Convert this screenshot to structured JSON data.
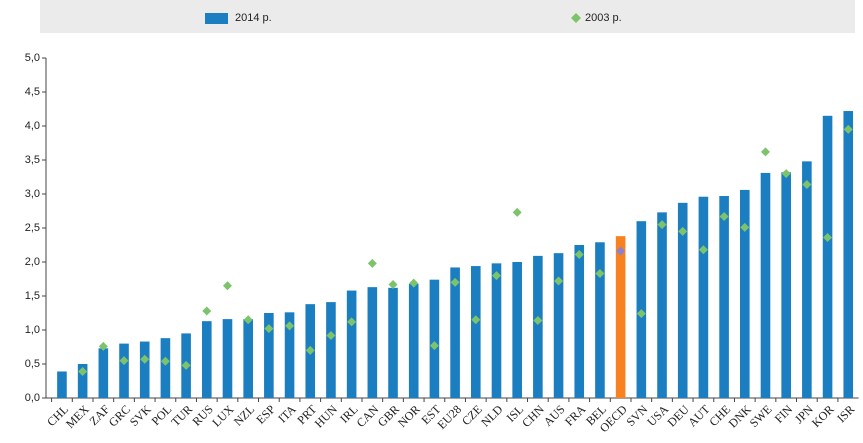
{
  "chart_data": {
    "type": "bar",
    "categories": [
      "CHL",
      "MEX",
      "ZAF",
      "GRC",
      "SVK",
      "POL",
      "TUR",
      "RUS",
      "LUX",
      "NZL",
      "ESP",
      "ITA",
      "PRT",
      "HUN",
      "IRL",
      "CAN",
      "GBR",
      "NOR",
      "EST",
      "EU28",
      "CZE",
      "NLD",
      "ISL",
      "CHN",
      "AUS",
      "FRA",
      "BEL",
      "OECD",
      "SVN",
      "USA",
      "DEU",
      "AUT",
      "CHE",
      "DNK",
      "SWE",
      "FIN",
      "JPN",
      "KOR",
      "ISR"
    ],
    "series": [
      {
        "name": "2014 р.",
        "color": "#1a7ec1",
        "marker": "bar",
        "values": [
          0.39,
          0.5,
          0.73,
          0.8,
          0.83,
          0.88,
          0.95,
          1.13,
          1.16,
          1.16,
          1.25,
          1.26,
          1.38,
          1.41,
          1.58,
          1.63,
          1.62,
          1.68,
          1.74,
          1.92,
          1.94,
          1.98,
          2.0,
          2.09,
          2.13,
          2.25,
          2.29,
          2.38,
          2.6,
          2.73,
          2.87,
          2.96,
          2.97,
          3.06,
          3.31,
          3.32,
          3.48,
          4.15,
          4.22
        ]
      },
      {
        "name": "2003 р.",
        "color": "#7dc36b",
        "marker": "diamond",
        "values": [
          null,
          0.39,
          0.76,
          0.55,
          0.57,
          0.54,
          0.48,
          1.28,
          1.65,
          1.15,
          1.02,
          1.06,
          0.7,
          0.92,
          1.12,
          1.98,
          1.67,
          1.69,
          0.77,
          1.7,
          1.15,
          1.8,
          2.73,
          1.14,
          1.72,
          2.11,
          1.83,
          2.16,
          1.24,
          2.55,
          2.45,
          2.18,
          2.67,
          2.51,
          3.62,
          3.3,
          3.14,
          2.36,
          3.95
        ]
      }
    ],
    "highlight": {
      "category": "OECD",
      "bar_color": "#f7821f",
      "marker_color": "#8b82d0"
    },
    "ylim": [
      0,
      5
    ],
    "yticks": [
      {
        "value": 0,
        "label": "0,0"
      },
      {
        "value": 0.5,
        "label": "0,5"
      },
      {
        "value": 1,
        "label": "1,0"
      },
      {
        "value": 1.5,
        "label": "1,5"
      },
      {
        "value": 2,
        "label": "2,0"
      },
      {
        "value": 2.5,
        "label": "2,5"
      },
      {
        "value": 3,
        "label": "3,0"
      },
      {
        "value": 3.5,
        "label": "3,5"
      },
      {
        "value": 4,
        "label": "4,0"
      },
      {
        "value": 4.5,
        "label": "4,5"
      },
      {
        "value": 5,
        "label": "5,0"
      }
    ],
    "grid": false,
    "legend": "top"
  }
}
